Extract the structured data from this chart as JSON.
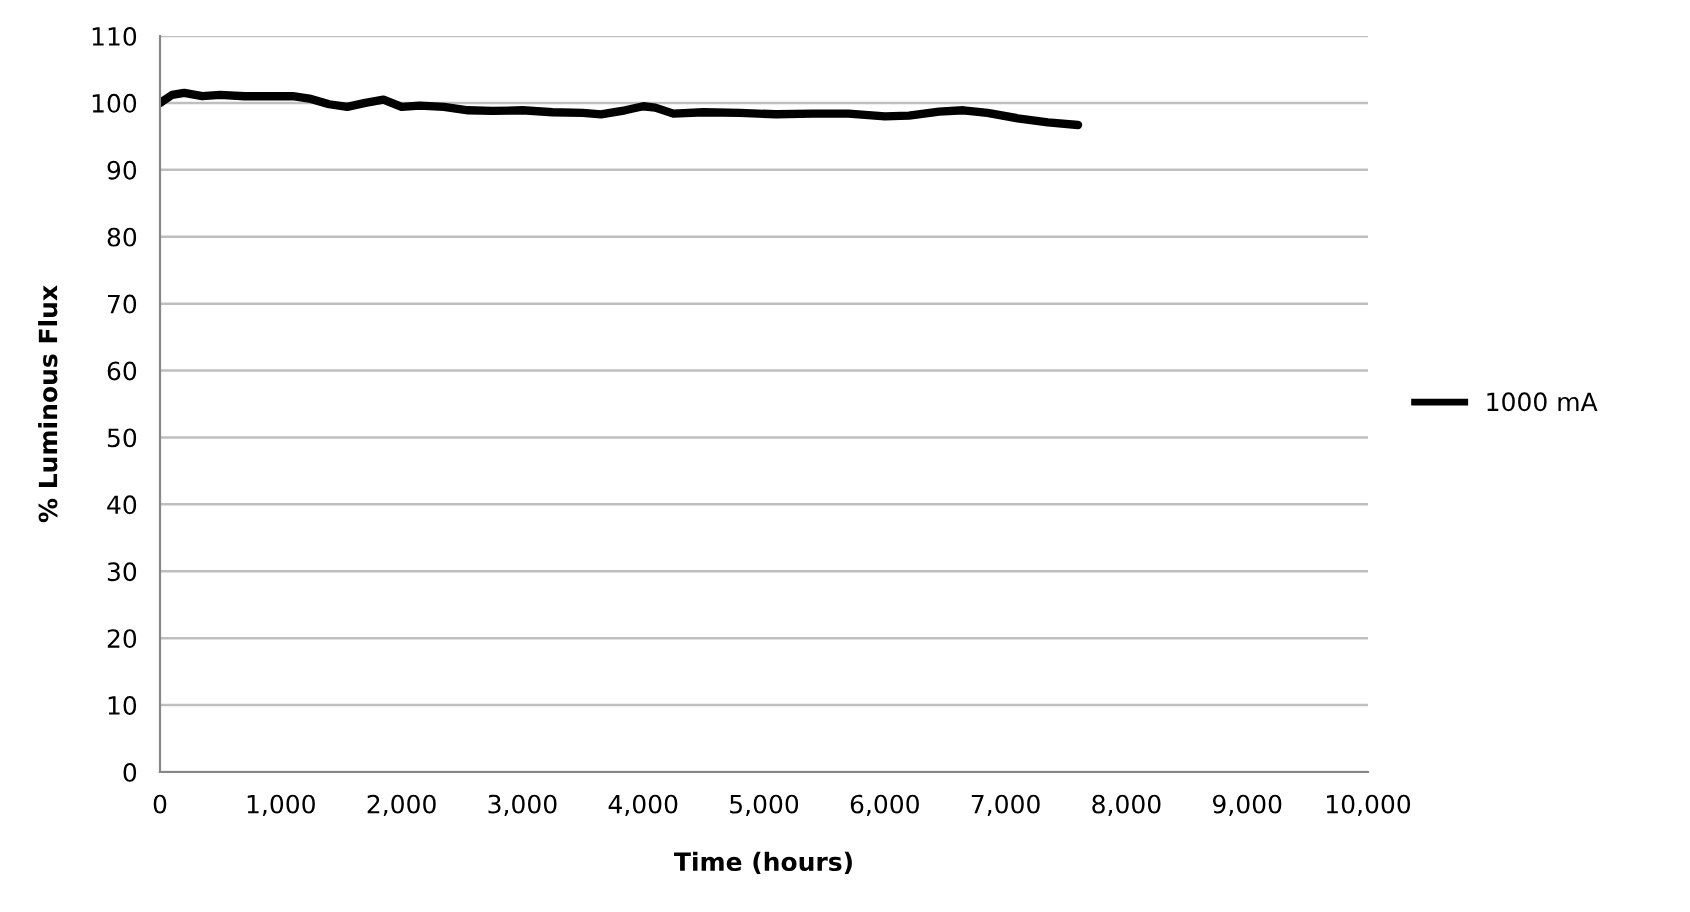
{
  "chart_data": {
    "type": "line",
    "xlabel": "Time (hours)",
    "ylabel": "% Luminous Flux",
    "x": [
      0,
      100,
      200,
      350,
      500,
      700,
      900,
      1100,
      1250,
      1400,
      1550,
      1700,
      1850,
      2000,
      2150,
      2350,
      2550,
      2750,
      3000,
      3250,
      3500,
      3650,
      3850,
      4000,
      4100,
      4250,
      4500,
      4800,
      5100,
      5400,
      5700,
      6000,
      6200,
      6450,
      6650,
      6850,
      7100,
      7350,
      7600
    ],
    "series": [
      {
        "name": "1000 mA",
        "color": "#000000",
        "values": [
          100,
          101.2,
          101.5,
          101,
          101.2,
          101,
          101,
          101,
          100.6,
          99.8,
          99.4,
          100,
          100.5,
          99.4,
          99.6,
          99.4,
          98.9,
          98.8,
          98.9,
          98.6,
          98.5,
          98.3,
          98.9,
          99.5,
          99.3,
          98.4,
          98.6,
          98.5,
          98.3,
          98.4,
          98.4,
          98,
          98.1,
          98.7,
          98.9,
          98.5,
          97.7,
          97.1,
          96.7
        ]
      }
    ],
    "xlim": [
      0,
      10000
    ],
    "xticks": [
      {
        "value": 0,
        "label": "0"
      },
      {
        "value": 1000,
        "label": "1,000"
      },
      {
        "value": 2000,
        "label": "2,000"
      },
      {
        "value": 3000,
        "label": "3,000"
      },
      {
        "value": 4000,
        "label": "4,000"
      },
      {
        "value": 5000,
        "label": "5,000"
      },
      {
        "value": 6000,
        "label": "6,000"
      },
      {
        "value": 7000,
        "label": "7,000"
      },
      {
        "value": 8000,
        "label": "8,000"
      },
      {
        "value": 9000,
        "label": "9,000"
      },
      {
        "value": 10000,
        "label": "10,000"
      }
    ],
    "ylim": [
      0,
      110
    ],
    "yticks": [
      0,
      10,
      20,
      30,
      40,
      50,
      60,
      70,
      80,
      90,
      100,
      110
    ],
    "grid": "y",
    "legend": "right",
    "marker": "none",
    "line_style": "solid"
  }
}
